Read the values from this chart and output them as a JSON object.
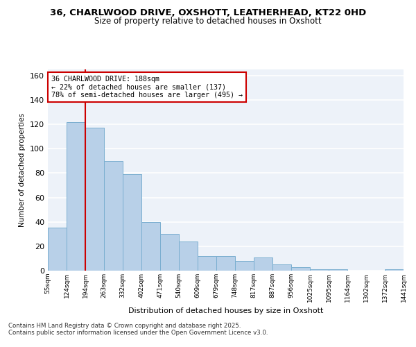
{
  "title_line1": "36, CHARLWOOD DRIVE, OXSHOTT, LEATHERHEAD, KT22 0HD",
  "title_line2": "Size of property relative to detached houses in Oxshott",
  "xlabel": "Distribution of detached houses by size in Oxshott",
  "ylabel": "Number of detached properties",
  "bar_values": [
    35,
    122,
    117,
    90,
    79,
    40,
    30,
    24,
    12,
    12,
    8,
    11,
    5,
    3,
    1,
    1,
    0,
    0,
    1
  ],
  "bin_labels": [
    "55sqm",
    "124sqm",
    "194sqm",
    "263sqm",
    "332sqm",
    "402sqm",
    "471sqm",
    "540sqm",
    "609sqm",
    "679sqm",
    "748sqm",
    "817sqm",
    "887sqm",
    "956sqm",
    "1025sqm",
    "1095sqm",
    "1164sqm",
    "1302sqm",
    "1372sqm",
    "1441sqm"
  ],
  "bar_color": "#b8d0e8",
  "bar_edge_color": "#7aaed0",
  "vline_color": "#cc0000",
  "vline_position": 1.5,
  "annotation_text": "36 CHARLWOOD DRIVE: 188sqm\n← 22% of detached houses are smaller (137)\n78% of semi-detached houses are larger (495) →",
  "annotation_box_color": "#ffffff",
  "annotation_box_edge": "#cc0000",
  "footer_text": "Contains HM Land Registry data © Crown copyright and database right 2025.\nContains public sector information licensed under the Open Government Licence v3.0.",
  "ylim": [
    0,
    165
  ],
  "yticks": [
    0,
    20,
    40,
    60,
    80,
    100,
    120,
    140,
    160
  ],
  "background_color": "#edf2f9",
  "grid_color": "#ffffff",
  "title1_fontsize": 9.5,
  "title2_fontsize": 8.5
}
